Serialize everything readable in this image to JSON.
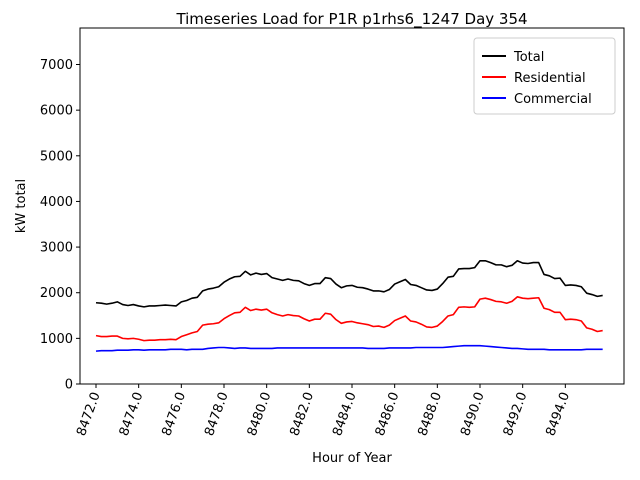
{
  "chart_data": {
    "type": "line",
    "title": "Timeseries Load for P1R p1rhs6_1247  Day 354",
    "xlabel": "Hour of Year",
    "ylabel": "kW total",
    "xlim": [
      8471.25,
      8496.75
    ],
    "ylim": [
      0,
      7800
    ],
    "xticks": [
      8472,
      8474,
      8476,
      8478,
      8480,
      8482,
      8484,
      8486,
      8488,
      8490,
      8492,
      8494
    ],
    "xtick_labels": [
      "8472.0",
      "8474.0",
      "8476.0",
      "8478.0",
      "8480.0",
      "8482.0",
      "8484.0",
      "8486.0",
      "8488.0",
      "8490.0",
      "8492.0",
      "8494.0"
    ],
    "yticks": [
      0,
      1000,
      2000,
      3000,
      4000,
      5000,
      6000,
      7000
    ],
    "ytick_labels": [
      "0",
      "1000",
      "2000",
      "3000",
      "4000",
      "5000",
      "6000",
      "7000"
    ],
    "legend_position": "top-right",
    "x_start": 8472,
    "x_step": 0.25,
    "series": [
      {
        "name": "Total",
        "color": "#000000",
        "values": [
          1780,
          1770,
          1750,
          1770,
          1800,
          1740,
          1720,
          1740,
          1710,
          1690,
          1710,
          1710,
          1720,
          1730,
          1720,
          1710,
          1800,
          1830,
          1880,
          1900,
          2040,
          2080,
          2100,
          2130,
          2230,
          2300,
          2350,
          2360,
          2470,
          2390,
          2430,
          2400,
          2420,
          2330,
          2300,
          2270,
          2300,
          2270,
          2260,
          2200,
          2160,
          2200,
          2200,
          2330,
          2310,
          2190,
          2110,
          2150,
          2160,
          2120,
          2110,
          2080,
          2040,
          2040,
          2020,
          2070,
          2190,
          2240,
          2290,
          2180,
          2160,
          2110,
          2060,
          2050,
          2080,
          2200,
          2340,
          2360,
          2520,
          2530,
          2530,
          2550,
          2700,
          2700,
          2660,
          2610,
          2610,
          2570,
          2600,
          2700,
          2650,
          2640,
          2660,
          2660,
          2400,
          2370,
          2310,
          2320,
          2160,
          2170,
          2160,
          2130,
          1990,
          1960,
          1920,
          1940
        ]
      },
      {
        "name": "Residential",
        "color": "#ff0000",
        "values": [
          1060,
          1040,
          1040,
          1050,
          1050,
          1000,
          990,
          1000,
          980,
          950,
          960,
          960,
          970,
          970,
          980,
          970,
          1040,
          1080,
          1120,
          1150,
          1290,
          1310,
          1320,
          1340,
          1430,
          1500,
          1560,
          1570,
          1680,
          1610,
          1640,
          1620,
          1640,
          1560,
          1520,
          1490,
          1520,
          1500,
          1490,
          1430,
          1380,
          1420,
          1420,
          1550,
          1530,
          1410,
          1330,
          1360,
          1370,
          1340,
          1320,
          1300,
          1260,
          1270,
          1240,
          1290,
          1390,
          1440,
          1490,
          1380,
          1360,
          1310,
          1250,
          1240,
          1270,
          1370,
          1490,
          1520,
          1680,
          1690,
          1680,
          1690,
          1860,
          1880,
          1850,
          1810,
          1800,
          1770,
          1810,
          1910,
          1880,
          1870,
          1880,
          1890,
          1660,
          1630,
          1570,
          1570,
          1410,
          1420,
          1410,
          1380,
          1230,
          1200,
          1150,
          1170
        ]
      },
      {
        "name": "Commercial",
        "color": "#0000ff",
        "values": [
          720,
          730,
          730,
          730,
          740,
          740,
          740,
          750,
          750,
          740,
          750,
          750,
          750,
          750,
          760,
          760,
          760,
          750,
          760,
          760,
          760,
          780,
          790,
          800,
          800,
          790,
          780,
          790,
          790,
          780,
          780,
          780,
          780,
          780,
          790,
          790,
          790,
          790,
          790,
          790,
          790,
          790,
          790,
          790,
          790,
          790,
          790,
          790,
          790,
          790,
          790,
          780,
          780,
          780,
          780,
          790,
          790,
          790,
          790,
          790,
          800,
          800,
          800,
          800,
          800,
          800,
          810,
          820,
          830,
          840,
          840,
          840,
          840,
          830,
          820,
          810,
          800,
          790,
          780,
          780,
          770,
          760,
          760,
          760,
          760,
          750,
          750,
          750,
          750,
          750,
          750,
          750,
          760,
          760,
          760,
          760
        ]
      }
    ]
  }
}
